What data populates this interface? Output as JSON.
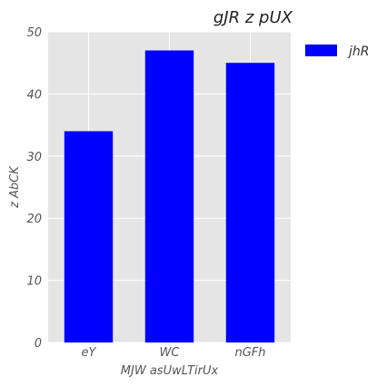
{
  "chart_data": {
    "type": "bar",
    "title": "gJR z pUX",
    "xlabel": "MJW asUwLTirUx",
    "ylabel": "z AbCK",
    "categories": [
      "eY",
      "WC",
      "nGFh"
    ],
    "series": [
      {
        "name": "jhR",
        "values": [
          34,
          47,
          45
        ],
        "color": "#0000ff"
      }
    ],
    "ylim": [
      0,
      50
    ],
    "yticks": [
      "0",
      "10",
      "20",
      "30",
      "40",
      "50"
    ],
    "grid": true,
    "legend": "outside-right-top",
    "colors": {
      "plot_background": "#e5e5e5",
      "grid": "#ffffff",
      "text": "#555555"
    }
  }
}
